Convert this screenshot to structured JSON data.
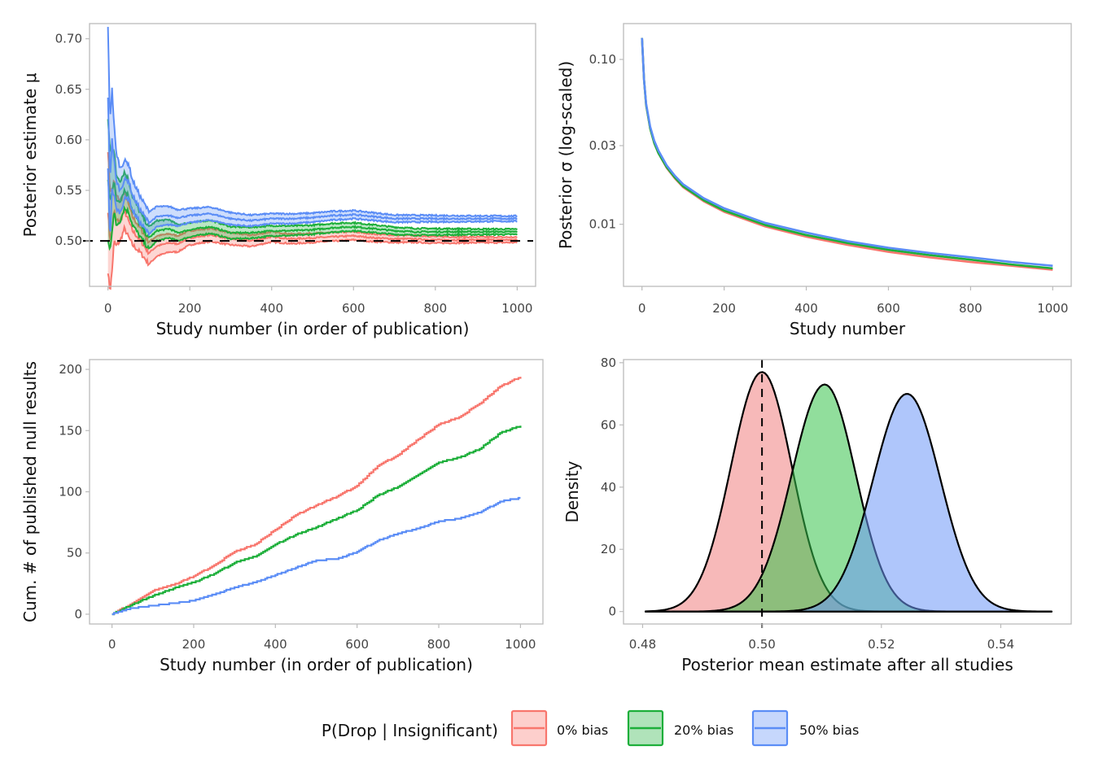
{
  "colors": {
    "bias0": "#F8766D",
    "bias20": "#1DAF3A",
    "bias50": "#5B8DF6",
    "frame": "#BBBBBB",
    "ref_line": "#000000"
  },
  "legend": {
    "title": "P(Drop | Insignificant)",
    "position": "bottom",
    "items": [
      {
        "label": "0% bias",
        "color": "#F8766D"
      },
      {
        "label": "20% bias",
        "color": "#1DAF3A"
      },
      {
        "label": "50% bias",
        "color": "#5B8DF6"
      }
    ]
  },
  "chart_data": [
    {
      "id": "posterior-mu",
      "type": "line",
      "position": "top-left",
      "title": "",
      "xlabel": "Study number (in order of publication)",
      "ylabel": "Posterior estimate μ",
      "xlim": [
        -45,
        1045
      ],
      "ylim": [
        0.455,
        0.715
      ],
      "xticks": [
        0,
        200,
        400,
        600,
        800,
        1000
      ],
      "xtick_labels": [
        "0",
        "200",
        "400",
        "600",
        "800",
        "1000"
      ],
      "yticks": [
        0.5,
        0.55,
        0.6,
        0.65,
        0.7
      ],
      "ytick_labels": [
        "0.50",
        "0.55",
        "0.60",
        "0.65",
        "0.70"
      ],
      "reference_line": {
        "axis": "y",
        "value": 0.5,
        "style": "dashed"
      },
      "grid": false,
      "band_note": "each series shows mean with a shaded credible band (lower, mean, upper)",
      "x": [
        0,
        5,
        10,
        15,
        20,
        30,
        40,
        50,
        60,
        80,
        100,
        120,
        150,
        170,
        200,
        250,
        300,
        350,
        400,
        450,
        500,
        550,
        600,
        650,
        700,
        750,
        800,
        850,
        900,
        950,
        1000
      ],
      "series": [
        {
          "name": "0% bias",
          "mean": [
            0.53,
            0.5,
            0.51,
            0.53,
            0.52,
            0.52,
            0.53,
            0.52,
            0.51,
            0.5,
            0.488,
            0.495,
            0.498,
            0.497,
            0.503,
            0.506,
            0.502,
            0.5,
            0.504,
            0.502,
            0.503,
            0.504,
            0.505,
            0.503,
            0.502,
            0.502,
            0.501,
            0.501,
            0.501,
            0.501,
            0.501
          ],
          "half_width": [
            0.06,
            0.05,
            0.04,
            0.03,
            0.025,
            0.02,
            0.018,
            0.016,
            0.014,
            0.012,
            0.011,
            0.01,
            0.009,
            0.008,
            0.007,
            0.0065,
            0.006,
            0.0055,
            0.005,
            0.0048,
            0.0045,
            0.0043,
            0.004,
            0.0038,
            0.0036,
            0.0034,
            0.0032,
            0.003,
            0.0028,
            0.0027,
            0.0026
          ]
        },
        {
          "name": "20% bias",
          "mean": [
            0.56,
            0.54,
            0.55,
            0.56,
            0.54,
            0.54,
            0.55,
            0.545,
            0.53,
            0.515,
            0.503,
            0.51,
            0.512,
            0.508,
            0.511,
            0.514,
            0.508,
            0.508,
            0.51,
            0.51,
            0.511,
            0.513,
            0.514,
            0.512,
            0.51,
            0.509,
            0.509,
            0.509,
            0.509,
            0.509,
            0.509
          ],
          "half_width": [
            0.06,
            0.05,
            0.04,
            0.03,
            0.025,
            0.02,
            0.018,
            0.016,
            0.014,
            0.012,
            0.011,
            0.01,
            0.009,
            0.008,
            0.007,
            0.0065,
            0.006,
            0.0055,
            0.005,
            0.0048,
            0.0045,
            0.0043,
            0.004,
            0.0038,
            0.0036,
            0.0034,
            0.0032,
            0.003,
            0.0028,
            0.0027,
            0.0026
          ]
        },
        {
          "name": "50% bias",
          "mean": [
            0.64,
            0.56,
            0.6,
            0.58,
            0.56,
            0.55,
            0.56,
            0.56,
            0.545,
            0.53,
            0.518,
            0.524,
            0.525,
            0.523,
            0.525,
            0.527,
            0.522,
            0.52,
            0.522,
            0.522,
            0.523,
            0.525,
            0.526,
            0.524,
            0.522,
            0.522,
            0.522,
            0.522,
            0.522,
            0.522,
            0.522
          ],
          "half_width": [
            0.07,
            0.06,
            0.05,
            0.035,
            0.028,
            0.022,
            0.019,
            0.017,
            0.015,
            0.013,
            0.011,
            0.01,
            0.009,
            0.008,
            0.007,
            0.0065,
            0.006,
            0.0055,
            0.005,
            0.0048,
            0.0045,
            0.0043,
            0.004,
            0.0038,
            0.0036,
            0.0034,
            0.0032,
            0.003,
            0.0028,
            0.0027,
            0.0026
          ]
        }
      ]
    },
    {
      "id": "posterior-sigma",
      "type": "line",
      "position": "top-right",
      "title": "",
      "xlabel": "Study number",
      "ylabel": "Posterior σ (log-scaled)",
      "yscale": "log",
      "xlim": [
        -45,
        1045
      ],
      "ylim": [
        0.0042,
        0.165
      ],
      "xticks": [
        0,
        200,
        400,
        600,
        800,
        1000
      ],
      "xtick_labels": [
        "0",
        "200",
        "400",
        "600",
        "800",
        "1000"
      ],
      "yticks": [
        0.01,
        0.03,
        0.1
      ],
      "ytick_labels": [
        "0.01",
        "0.03",
        "0.10"
      ],
      "grid": false,
      "x": [
        0,
        5,
        10,
        20,
        30,
        40,
        60,
        80,
        100,
        150,
        200,
        300,
        400,
        500,
        600,
        700,
        800,
        900,
        1000
      ],
      "series": [
        {
          "name": "0% bias",
          "values": [
            0.135,
            0.075,
            0.053,
            0.038,
            0.031,
            0.027,
            0.022,
            0.019,
            0.0168,
            0.0138,
            0.0119,
            0.0097,
            0.0084,
            0.0075,
            0.0068,
            0.0063,
            0.0059,
            0.0056,
            0.0053
          ]
        },
        {
          "name": "20% bias",
          "values": [
            0.135,
            0.075,
            0.053,
            0.038,
            0.031,
            0.027,
            0.0222,
            0.0192,
            0.017,
            0.014,
            0.0121,
            0.0099,
            0.0086,
            0.0077,
            0.007,
            0.0065,
            0.0061,
            0.0057,
            0.0054
          ]
        },
        {
          "name": "50% bias",
          "values": [
            0.135,
            0.075,
            0.054,
            0.039,
            0.032,
            0.028,
            0.0228,
            0.0197,
            0.0175,
            0.0144,
            0.0125,
            0.0102,
            0.0089,
            0.0079,
            0.0072,
            0.0067,
            0.0063,
            0.0059,
            0.0056
          ]
        }
      ]
    },
    {
      "id": "cumulative-nulls",
      "type": "line",
      "position": "bottom-left",
      "title": "",
      "xlabel": "Study number (in order of publication)",
      "ylabel": "Cum. # of published null results",
      "xlim": [
        -55,
        1055
      ],
      "ylim": [
        -8,
        208
      ],
      "xticks": [
        0,
        200,
        400,
        600,
        800,
        1000
      ],
      "xtick_labels": [
        "0",
        "200",
        "400",
        "600",
        "800",
        "1000"
      ],
      "yticks": [
        0,
        50,
        100,
        150,
        200
      ],
      "ytick_labels": [
        "0",
        "50",
        "100",
        "150",
        "200"
      ],
      "grid": false,
      "x": [
        0,
        50,
        100,
        150,
        200,
        250,
        300,
        350,
        400,
        450,
        500,
        550,
        600,
        650,
        700,
        750,
        800,
        850,
        900,
        950,
        1000
      ],
      "series": [
        {
          "name": "0% bias",
          "values": [
            0,
            9,
            19,
            24,
            31,
            40,
            51,
            57,
            69,
            81,
            89,
            96,
            105,
            121,
            130,
            143,
            155,
            161,
            172,
            186,
            194
          ]
        },
        {
          "name": "20% bias",
          "values": [
            0,
            8,
            15,
            21,
            26,
            33,
            42,
            47,
            57,
            65,
            71,
            78,
            85,
            97,
            104,
            114,
            124,
            128,
            135,
            148,
            154
          ]
        },
        {
          "name": "50% bias",
          "values": [
            0,
            5,
            7,
            9,
            11,
            16,
            22,
            26,
            32,
            38,
            44,
            45,
            51,
            60,
            66,
            70,
            76,
            78,
            83,
            92,
            95
          ]
        }
      ]
    },
    {
      "id": "posterior-density",
      "type": "area",
      "subtype": "density",
      "position": "bottom-right",
      "title": "",
      "xlabel": "Posterior mean estimate after all studies",
      "ylabel": "Density",
      "xlim": [
        0.4768,
        0.5518
      ],
      "ylim": [
        -4,
        81
      ],
      "xticks": [
        0.48,
        0.5,
        0.52,
        0.54
      ],
      "xtick_labels": [
        "0.48",
        "0.50",
        "0.52",
        "0.54"
      ],
      "yticks": [
        0,
        20,
        40,
        60,
        80
      ],
      "ytick_labels": [
        "0",
        "20",
        "40",
        "60",
        "80"
      ],
      "reference_line": {
        "axis": "x",
        "value": 0.5,
        "style": "dashed"
      },
      "grid": false,
      "fill_alpha": 0.55,
      "series": [
        {
          "name": "0% bias",
          "peak_x": 0.5,
          "peak_density": 77,
          "left_sd": 0.0052,
          "right_sd": 0.005,
          "range": [
            0.4805,
            0.5485
          ]
        },
        {
          "name": "20% bias",
          "peak_x": 0.5105,
          "peak_density": 73,
          "left_sd": 0.0055,
          "right_sd": 0.0052,
          "range": [
            0.4805,
            0.5485
          ]
        },
        {
          "name": "50% bias",
          "peak_x": 0.5243,
          "peak_density": 70,
          "left_sd": 0.0057,
          "right_sd": 0.0056,
          "range": [
            0.4805,
            0.5485
          ]
        }
      ]
    }
  ]
}
